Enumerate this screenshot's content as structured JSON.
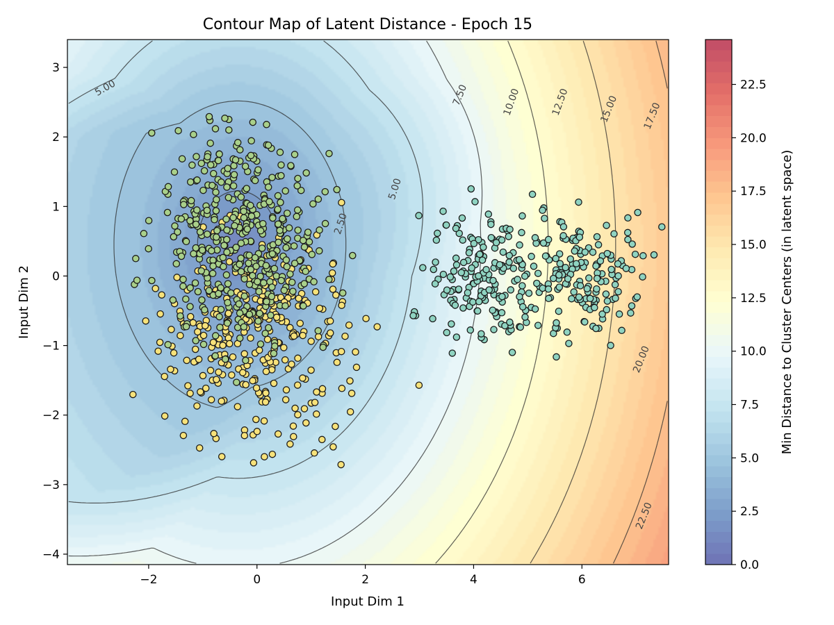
{
  "chart_data": {
    "type": "contour-scatter",
    "title": "Contour Map of Latent Distance - Epoch 15",
    "xlabel": "Input Dim 1",
    "ylabel": "Input Dim 2",
    "xlim": [
      -3.5,
      7.6
    ],
    "ylim": [
      -4.15,
      3.4
    ],
    "xticks": [
      -2,
      0,
      2,
      4,
      6
    ],
    "yticks": [
      -4,
      -3,
      -2,
      -1,
      0,
      1,
      2,
      3
    ],
    "xtick_labels": [
      "−2",
      "0",
      "2",
      "4",
      "6"
    ],
    "ytick_labels": [
      "−4",
      "−3",
      "−2",
      "−1",
      "0",
      "1",
      "2",
      "3"
    ],
    "colorbar": {
      "label": "Min Distance to Cluster Centers (in latent space)",
      "range": [
        0.0,
        24.6
      ],
      "ticks": [
        0.0,
        2.5,
        5.0,
        7.5,
        10.0,
        12.5,
        15.0,
        17.5,
        20.0,
        22.5
      ],
      "tick_labels": [
        "0.0",
        "2.5",
        "5.0",
        "7.5",
        "10.0",
        "12.5",
        "15.0",
        "17.5",
        "20.0",
        "22.5"
      ],
      "colormap": "RdYlBu_r",
      "colors": [
        "#313695",
        "#4575b4",
        "#74add1",
        "#abd9e9",
        "#e0f3f8",
        "#ffffbf",
        "#fee090",
        "#fdae61",
        "#f46d43",
        "#d73027",
        "#a50026"
      ]
    },
    "contour_levels": [
      2.5,
      5.0,
      7.5,
      10.0,
      12.5,
      15.0,
      17.5,
      20.0,
      22.5
    ],
    "contour_labels": [
      {
        "text": "5.00",
        "x": -2.8,
        "y": 2.7,
        "angle": -30
      },
      {
        "text": "2.50",
        "x": 1.55,
        "y": 0.75,
        "angle": -72
      },
      {
        "text": "5.00",
        "x": 2.55,
        "y": 1.25,
        "angle": -72
      },
      {
        "text": "7.50",
        "x": 3.75,
        "y": 2.6,
        "angle": -68
      },
      {
        "text": "10.00",
        "x": 4.7,
        "y": 2.5,
        "angle": -70
      },
      {
        "text": "12.50",
        "x": 5.6,
        "y": 2.5,
        "angle": -70
      },
      {
        "text": "15.00",
        "x": 6.5,
        "y": 2.4,
        "angle": -68
      },
      {
        "text": "17.50",
        "x": 7.3,
        "y": 2.3,
        "angle": -68
      },
      {
        "text": "20.00",
        "x": 7.1,
        "y": -1.2,
        "angle": -68
      },
      {
        "text": "22.50",
        "x": 7.15,
        "y": -3.45,
        "angle": -68
      }
    ],
    "series": [
      {
        "color": "#f7e27a",
        "center": [
          0.0,
          -0.8
        ],
        "spread": [
          0.85,
          0.8
        ],
        "count": 320
      },
      {
        "color": "#a9d08a",
        "center": [
          -0.3,
          0.6
        ],
        "spread": [
          0.75,
          0.75
        ],
        "count": 420
      },
      {
        "color": "#8fd3c1",
        "center": [
          4.1,
          0.05
        ],
        "spread": [
          0.55,
          0.45
        ],
        "count": 170
      },
      {
        "color": "#8fd3c1",
        "center": [
          6.0,
          0.05
        ],
        "spread": [
          0.55,
          0.45
        ],
        "count": 170
      }
    ],
    "grid": false,
    "legend": "none"
  }
}
